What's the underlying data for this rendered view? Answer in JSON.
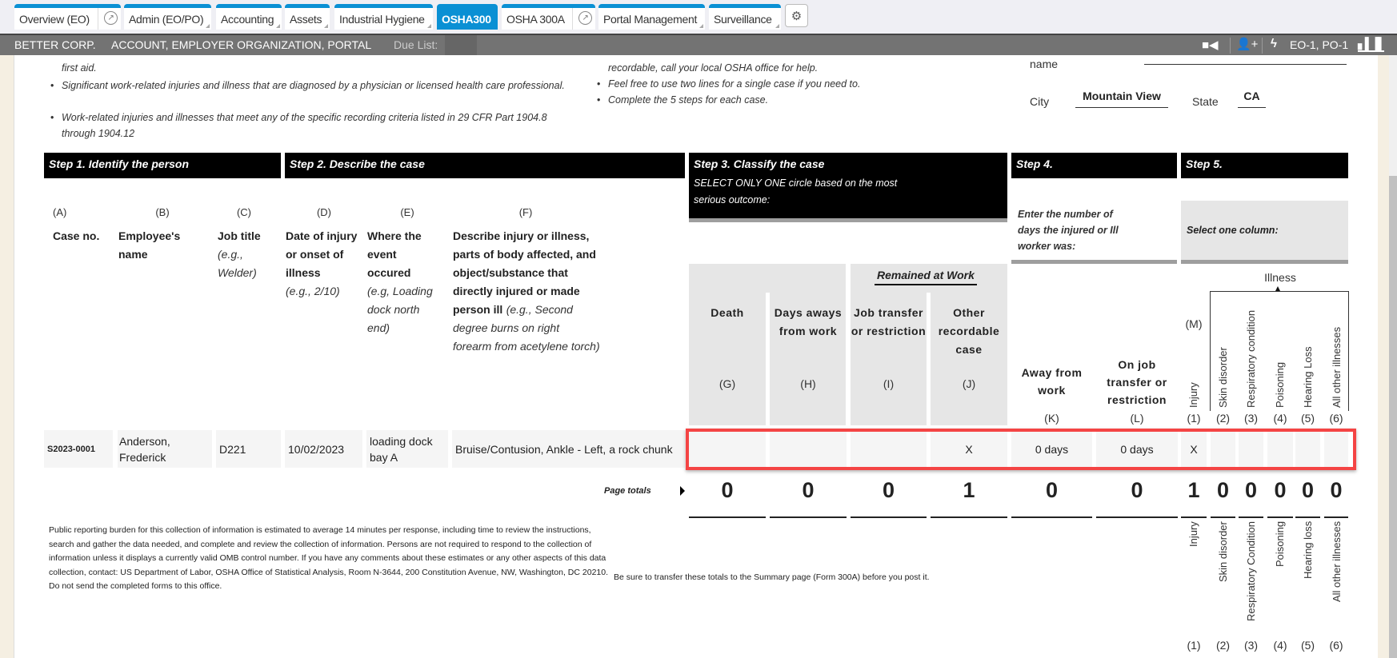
{
  "tabs": [
    {
      "label": "Overview (EO)",
      "external": true
    },
    {
      "label": "Admin (EO/PO)"
    },
    {
      "label": "Accounting"
    },
    {
      "label": "Assets"
    },
    {
      "label": "Industrial Hygiene"
    },
    {
      "label": "OSHA300",
      "active": true
    },
    {
      "label": "OSHA 300A",
      "external": true
    },
    {
      "label": "Portal Management"
    },
    {
      "label": "Surveillance"
    }
  ],
  "topbar": {
    "company": "BETTER CORP.",
    "context": "ACCOUNT, EMPLOYER ORGANIZATION, PORTAL",
    "due_list_label": "Due List:",
    "due_list_value": "",
    "org_codes": "EO-1, PO-1"
  },
  "intro": {
    "left": [
      "first aid.",
      "Significant work-related injuries and illness that are diagnosed by a physician or licensed health care professional.",
      "Work-related injuries and illnesses that meet any of the specific recording criteria listed in 29 CFR Part 1904.8 through 1904.12"
    ],
    "middle": [
      "recordable, call your local OSHA office for help.",
      "Feel free to use two lines for a single case if you need to.",
      "Complete the 5 steps for each case."
    ]
  },
  "establishment": {
    "name_label": "name",
    "name_value": "",
    "city_label": "City",
    "city_value": "Mountain View",
    "state_label": "State",
    "state_value": "CA"
  },
  "steps": {
    "step1": "Step 1. Identify the person",
    "step2": "Step 2. Describe the case",
    "step3": "Step 3. Classify the case",
    "step3_note": "SELECT ONLY ONE circle based on the most serious outcome:",
    "step4": "Step 4.",
    "step4_note": "Enter the number of days the injured or Ill worker was:",
    "step5": "Step 5.",
    "step5_note": "Select one column:"
  },
  "columns": {
    "A": {
      "letter": "(A)",
      "title": "Case no."
    },
    "B": {
      "letter": "(B)",
      "title": "Employee's name"
    },
    "C": {
      "letter": "(C)",
      "title": "Job title",
      "example": "(e.g., Welder)"
    },
    "D": {
      "letter": "(D)",
      "title": "Date of injury or onset of illness",
      "example": "(e.g., 2/10)"
    },
    "E": {
      "letter": "(E)",
      "title": "Where the event occured",
      "example": "(e.g, Loading dock north end)"
    },
    "F": {
      "letter": "(F)",
      "title": "Describe injury or illness, parts of body affected, and object/substance that directly injured or made person ill",
      "example": "(e.g., Second degree burns on right forearm from acetylene torch)"
    },
    "remained_at_work": "Remained at Work",
    "G": {
      "letter": "(G)",
      "title": "Death"
    },
    "H": {
      "letter": "(H)",
      "title": "Days aways from work"
    },
    "I": {
      "letter": "(I)",
      "title": "Job transfer or restriction"
    },
    "J": {
      "letter": "(J)",
      "title": "Other recordable case"
    },
    "K": {
      "letter": "(K)",
      "title": "Away from work"
    },
    "L": {
      "letter": "(L)",
      "title": "On job transfer or restriction"
    },
    "M": {
      "letter": "(M)",
      "illness_label": "Illness",
      "sub": [
        {
          "num": "(1)",
          "title": "Injury"
        },
        {
          "num": "(2)",
          "title": "Skin disorder"
        },
        {
          "num": "(3)",
          "title": "Respiratory condition"
        },
        {
          "num": "(4)",
          "title": "Poisoning"
        },
        {
          "num": "(5)",
          "title": "Hearing Loss"
        },
        {
          "num": "(6)",
          "title": "All other illnesses"
        }
      ]
    }
  },
  "rows": [
    {
      "case_no": "S2023-0001",
      "employee": "Anderson, Frederick",
      "job_title": "D221",
      "date": "10/02/2023",
      "location": "loading dock bay A",
      "description": "Bruise/Contusion, Ankle - Left, a rock chunk",
      "G": "",
      "H": "",
      "I": "",
      "J": "X",
      "K": "0 days",
      "L": "0 days",
      "M1": "X",
      "M2": "",
      "M3": "",
      "M4": "",
      "M5": "",
      "M6": ""
    }
  ],
  "totals": {
    "label": "Page totals",
    "G": "0",
    "H": "0",
    "I": "0",
    "J": "1",
    "K": "0",
    "L": "0",
    "M1": "1",
    "M2": "0",
    "M3": "0",
    "M4": "0",
    "M5": "0",
    "M6": "0"
  },
  "footer": {
    "burden": "Public reporting burden for this collection of information is estimated to average 14 minutes per response, including time to review the instructions, search and gather the data needed, and complete and review the collection of information. Persons are not required to respond to the collection of information unless it displays a currently valid OMB control number. If you have any comments about these estimates or any other aspects of this data collection, contact: US Department of Labor, OSHA Office of Statistical Analysis, Room N-3644, 200 Constitution Avenue, NW, Washington, DC 20210. Do not send the completed forms to this office.",
    "transfer_note": "Be sure to transfer these totals to the Summary page (Form 300A) before you post it.",
    "bottom_labels": [
      {
        "num": "(1)",
        "title": "Injury"
      },
      {
        "num": "(2)",
        "title": "Skin disorder"
      },
      {
        "num": "(3)",
        "title": "Respiratory Condition"
      },
      {
        "num": "(4)",
        "title": "Poisoning"
      },
      {
        "num": "(5)",
        "title": "Hearing loss"
      },
      {
        "num": "(6)",
        "title": "All other illnesses"
      }
    ]
  },
  "colors": {
    "tab_accent": "#0a90d4",
    "topbar": "#737373",
    "highlight_box": "#f44444"
  }
}
